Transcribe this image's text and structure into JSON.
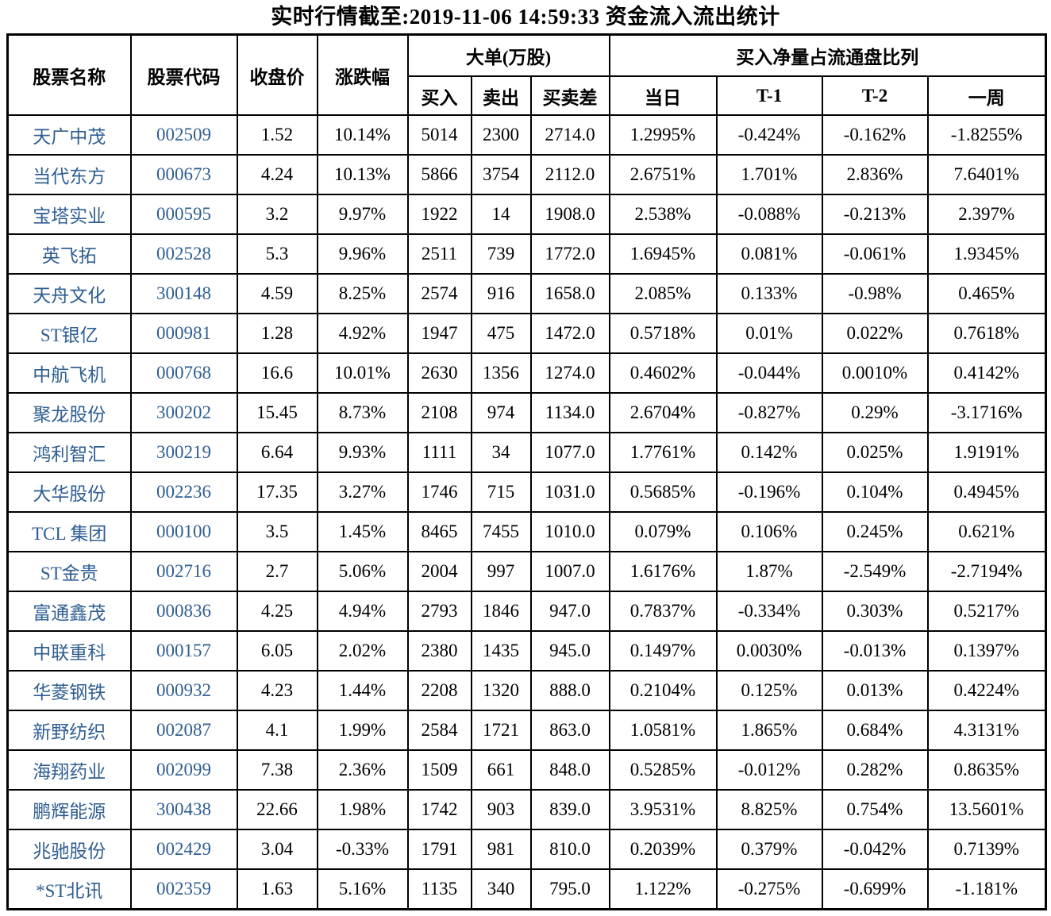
{
  "title": "实时行情截至:2019-11-06 14:59:33 资金流入流出统计",
  "colors": {
    "stock_link_blue": "#2f5e92",
    "table_border": "#000000",
    "text": "#000000",
    "background": "#ffffff"
  },
  "table": {
    "top_headers": {
      "stock_name": "股票名称",
      "stock_code": "股票代码",
      "close_price": "收盘价",
      "change_pct": "涨跌幅",
      "large_orders_group": "大单(万股)",
      "net_buy_ratio_group": "买入净量占流通盘比列"
    },
    "sub_headers": {
      "buy": "买入",
      "sell": "卖出",
      "buy_sell_diff": "买卖差",
      "today": "当日",
      "t_minus_1": "T-1",
      "t_minus_2": "T-2",
      "week": "一周"
    },
    "cell_names": [
      "stock-name-cell",
      "stock-code-cell",
      "close-price-cell",
      "change-pct-cell",
      "buy-volume-cell",
      "sell-volume-cell",
      "buy-sell-diff-cell",
      "ratio-today-cell",
      "ratio-t1-cell",
      "ratio-t2-cell",
      "ratio-week-cell"
    ]
  },
  "chart_data": {
    "type": "table",
    "title": "实时行情截至:2019-11-06 14:59:33 资金流入流出统计",
    "columns": [
      "股票名称",
      "股票代码",
      "收盘价",
      "涨跌幅",
      "大单(万股) 买入",
      "大单(万股) 卖出",
      "大单(万股) 买卖差",
      "买入净量占流通盘比列 当日",
      "买入净量占流通盘比列 T-1",
      "买入净量占流通盘比列 T-2",
      "买入净量占流通盘比列 一周"
    ],
    "rows": [
      [
        "天广中茂",
        "002509",
        "1.52",
        "10.14%",
        "5014",
        "2300",
        "2714.0",
        "1.2995%",
        "-0.424%",
        "-0.162%",
        "-1.8255%"
      ],
      [
        "当代东方",
        "000673",
        "4.24",
        "10.13%",
        "5866",
        "3754",
        "2112.0",
        "2.6751%",
        "1.701%",
        "2.836%",
        "7.6401%"
      ],
      [
        "宝塔实业",
        "000595",
        "3.2",
        "9.97%",
        "1922",
        "14",
        "1908.0",
        "2.538%",
        "-0.088%",
        "-0.213%",
        "2.397%"
      ],
      [
        "英飞拓",
        "002528",
        "5.3",
        "9.96%",
        "2511",
        "739",
        "1772.0",
        "1.6945%",
        "0.081%",
        "-0.061%",
        "1.9345%"
      ],
      [
        "天舟文化",
        "300148",
        "4.59",
        "8.25%",
        "2574",
        "916",
        "1658.0",
        "2.085%",
        "0.133%",
        "-0.98%",
        "0.465%"
      ],
      [
        "ST银亿",
        "000981",
        "1.28",
        "4.92%",
        "1947",
        "475",
        "1472.0",
        "0.5718%",
        "0.01%",
        "0.022%",
        "0.7618%"
      ],
      [
        "中航飞机",
        "000768",
        "16.6",
        "10.01%",
        "2630",
        "1356",
        "1274.0",
        "0.4602%",
        "-0.044%",
        "0.0010%",
        "0.4142%"
      ],
      [
        "聚龙股份",
        "300202",
        "15.45",
        "8.73%",
        "2108",
        "974",
        "1134.0",
        "2.6704%",
        "-0.827%",
        "0.29%",
        "-3.1716%"
      ],
      [
        "鸿利智汇",
        "300219",
        "6.64",
        "9.93%",
        "1111",
        "34",
        "1077.0",
        "1.7761%",
        "0.142%",
        "0.025%",
        "1.9191%"
      ],
      [
        "大华股份",
        "002236",
        "17.35",
        "3.27%",
        "1746",
        "715",
        "1031.0",
        "0.5685%",
        "-0.196%",
        "0.104%",
        "0.4945%"
      ],
      [
        "TCL 集团",
        "000100",
        "3.5",
        "1.45%",
        "8465",
        "7455",
        "1010.0",
        "0.079%",
        "0.106%",
        "0.245%",
        "0.621%"
      ],
      [
        "ST金贵",
        "002716",
        "2.7",
        "5.06%",
        "2004",
        "997",
        "1007.0",
        "1.6176%",
        "1.87%",
        "-2.549%",
        "-2.7194%"
      ],
      [
        "富通鑫茂",
        "000836",
        "4.25",
        "4.94%",
        "2793",
        "1846",
        "947.0",
        "0.7837%",
        "-0.334%",
        "0.303%",
        "0.5217%"
      ],
      [
        "中联重科",
        "000157",
        "6.05",
        "2.02%",
        "2380",
        "1435",
        "945.0",
        "0.1497%",
        "0.0030%",
        "-0.013%",
        "0.1397%"
      ],
      [
        "华菱钢铁",
        "000932",
        "4.23",
        "1.44%",
        "2208",
        "1320",
        "888.0",
        "0.2104%",
        "0.125%",
        "0.013%",
        "0.4224%"
      ],
      [
        "新野纺织",
        "002087",
        "4.1",
        "1.99%",
        "2584",
        "1721",
        "863.0",
        "1.0581%",
        "1.865%",
        "0.684%",
        "4.3131%"
      ],
      [
        "海翔药业",
        "002099",
        "7.38",
        "2.36%",
        "1509",
        "661",
        "848.0",
        "0.5285%",
        "-0.012%",
        "0.282%",
        "0.8635%"
      ],
      [
        "鹏辉能源",
        "300438",
        "22.66",
        "1.98%",
        "1742",
        "903",
        "839.0",
        "3.9531%",
        "8.825%",
        "0.754%",
        "13.5601%"
      ],
      [
        "兆驰股份",
        "002429",
        "3.04",
        "-0.33%",
        "1791",
        "981",
        "810.0",
        "0.2039%",
        "0.379%",
        "-0.042%",
        "0.7139%"
      ],
      [
        "*ST北讯",
        "002359",
        "1.63",
        "5.16%",
        "1135",
        "340",
        "795.0",
        "1.122%",
        "-0.275%",
        "-0.699%",
        "-1.181%"
      ]
    ]
  }
}
